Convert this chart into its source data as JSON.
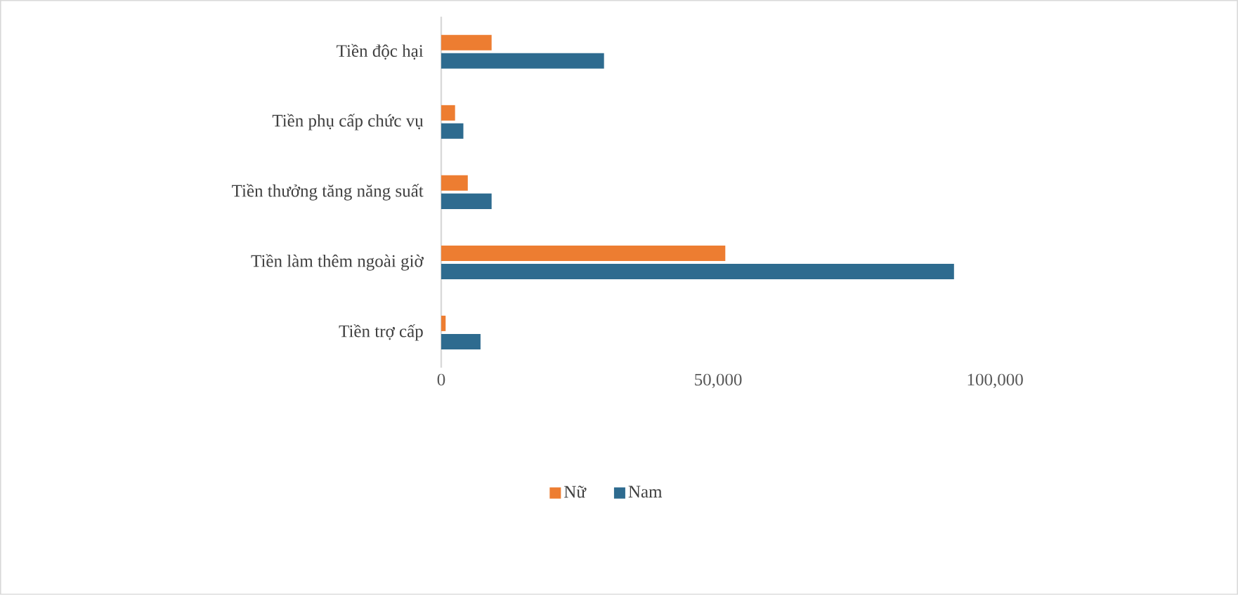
{
  "chart_data": {
    "type": "bar",
    "orientation": "horizontal",
    "categories": [
      "Tiền độc hại",
      "Tiền phụ cấp chức vụ",
      "Tiền thưởng tăng năng suất",
      "Tiền làm thêm ngoài giờ",
      "Tiền trợ cấp"
    ],
    "series": [
      {
        "name": "Nữ",
        "color": "#ed7d31",
        "values": [
          9100,
          2500,
          4800,
          51300,
          800
        ]
      },
      {
        "name": "Nam",
        "color": "#2e6b8f",
        "values": [
          29400,
          4000,
          9100,
          92600,
          7100
        ]
      }
    ],
    "xlim": [
      0,
      100000
    ],
    "xticks": [
      0,
      {
        "value": 50000,
        "label": "50,000"
      },
      {
        "value": 100000,
        "label": "100,000"
      }
    ],
    "grid": false,
    "legend": "bottom"
  }
}
